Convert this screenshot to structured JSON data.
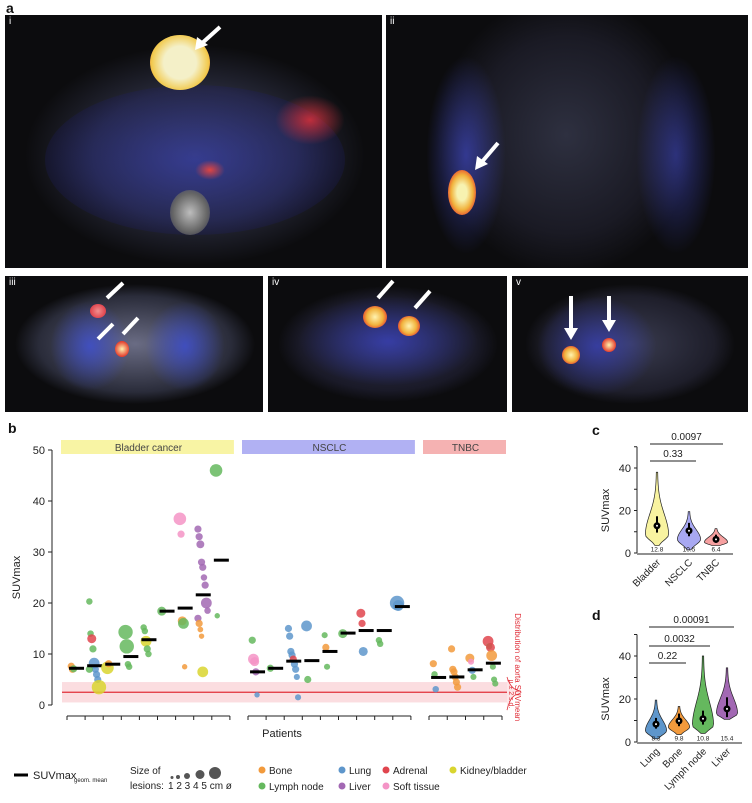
{
  "panel_labels": {
    "a": "a",
    "b": "b",
    "c": "c",
    "d": "d"
  },
  "panel_a": {
    "images": [
      {
        "label": "i"
      },
      {
        "label": "ii"
      },
      {
        "label": "iii"
      },
      {
        "label": "iv"
      },
      {
        "label": "v"
      }
    ]
  },
  "colors": {
    "Bone": "#f29a3c",
    "Lymph node": "#65b85e",
    "Lung": "#5e96cb",
    "Liver": "#a268b3",
    "Adrenal": "#e0454e",
    "Soft tissue": "#f494c6",
    "Kidney/bladder": "#d9d52f",
    "aorta": "#e0303a"
  },
  "chart_data": [
    {
      "type": "scatter",
      "panel": "b",
      "ylabel": "SUVmax",
      "xlabel": "Patients",
      "ylim": [
        0,
        50
      ],
      "yticks": [
        0,
        10,
        20,
        30,
        40,
        50
      ],
      "groups": [
        {
          "name": "Bladder cancer",
          "color": "#f8f4a4",
          "patients": [
            {
              "mean": 7.2,
              "lesions": [
                [
                  7.6,
                  "Bone",
                  1
                ],
                [
                  7.0,
                  "Bone",
                  1
                ],
                [
                  7.1,
                  "Lymph node",
                  1
                ]
              ]
            },
            {
              "mean": 7.7,
              "lesions": [
                [
                  20.3,
                  "Lymph node",
                  0.8
                ],
                [
                  14,
                  "Lymph node",
                  0.8
                ],
                [
                  13,
                  "Adrenal",
                  1.5
                ],
                [
                  11,
                  "Lymph node",
                  1
                ],
                [
                  8.2,
                  "Lung",
                  2
                ],
                [
                  7,
                  "Lung",
                  1
                ],
                [
                  6,
                  "Lung",
                  1
                ],
                [
                  5,
                  "Lung",
                  1
                ],
                [
                  3.5,
                  "Kidney/bladder",
                  3
                ],
                [
                  7,
                  "Lymph node",
                  1
                ]
              ]
            },
            {
              "mean": 8.0,
              "lesions": [
                [
                  7.3,
                  "Kidney/bladder",
                  2.5
                ],
                [
                  8.1,
                  "Bone",
                  1
                ]
              ]
            },
            {
              "mean": 9.5,
              "lesions": [
                [
                  14.3,
                  "Lymph node",
                  3
                ],
                [
                  11.5,
                  "Lymph node",
                  3
                ],
                [
                  8,
                  "Lymph node",
                  0.8
                ],
                [
                  7.5,
                  "Lymph node",
                  0.8
                ]
              ]
            },
            {
              "mean": 12.8,
              "lesions": [
                [
                  15.2,
                  "Lymph node",
                  0.8
                ],
                [
                  14.5,
                  "Lymph node",
                  0.8
                ],
                [
                  12.5,
                  "Kidney/bladder",
                  2
                ],
                [
                  11,
                  "Lymph node",
                  1
                ],
                [
                  10,
                  "Lymph node",
                  0.8
                ]
              ]
            },
            {
              "mean": 18.4,
              "lesions": [
                [
                  18.4,
                  "Lymph node",
                  1.5
                ]
              ]
            },
            {
              "mean": 19.0,
              "lesions": [
                [
                  36.5,
                  "Soft tissue",
                  2.5
                ],
                [
                  33.5,
                  "Soft tissue",
                  1
                ],
                [
                  16.5,
                  "Bone",
                  1.5
                ],
                [
                  16,
                  "Lymph node",
                  2
                ],
                [
                  7.5,
                  "Bone",
                  0.5
                ]
              ]
            },
            {
              "mean": 21.6,
              "lesions": [
                [
                  34.5,
                  "Liver",
                  1
                ],
                [
                  33,
                  "Liver",
                  1
                ],
                [
                  31.5,
                  "Liver",
                  1.2
                ],
                [
                  28,
                  "Liver",
                  1
                ],
                [
                  27,
                  "Liver",
                  1
                ],
                [
                  25,
                  "Liver",
                  0.8
                ],
                [
                  23.5,
                  "Liver",
                  1
                ],
                [
                  20,
                  "Liver",
                  2
                ],
                [
                  18.5,
                  "Liver",
                  0.8
                ],
                [
                  17,
                  "Liver",
                  1
                ],
                [
                  16,
                  "Bone",
                  1
                ],
                [
                  14.8,
                  "Bone",
                  0.6
                ],
                [
                  13.5,
                  "Bone",
                  0.5
                ],
                [
                  6.5,
                  "Kidney/bladder",
                  2
                ]
              ]
            },
            {
              "mean": 28.4,
              "lesions": [
                [
                  46,
                  "Lymph node",
                  2.5
                ],
                [
                  17.5,
                  "Lymph node",
                  0.5
                ]
              ]
            }
          ]
        },
        {
          "name": "NSCLC",
          "color": "#b1b1f3",
          "patients": [
            {
              "mean": 6.5,
              "lesions": [
                [
                  12.7,
                  "Lymph node",
                  1
                ],
                [
                  9,
                  "Soft tissue",
                  2
                ],
                [
                  8.5,
                  "Soft tissue",
                  1.5
                ],
                [
                  6.5,
                  "Liver",
                  1
                ],
                [
                  2,
                  "Lung",
                  0.5
                ]
              ]
            },
            {
              "mean": 7.2,
              "lesions": [
                [
                  7.2,
                  "Lymph node",
                  1
                ]
              ]
            },
            {
              "mean": 8.6,
              "lesions": [
                [
                  15,
                  "Lung",
                  1
                ],
                [
                  13.5,
                  "Lung",
                  1
                ],
                [
                  10.5,
                  "Lung",
                  1
                ],
                [
                  9.8,
                  "Lung",
                  1
                ],
                [
                  9,
                  "Adrenal",
                  1
                ],
                [
                  8,
                  "Lung",
                  1
                ],
                [
                  7,
                  "Lung",
                  1
                ],
                [
                  5.5,
                  "Lung",
                  0.7
                ],
                [
                  1.5,
                  "Lung",
                  0.7
                ]
              ]
            },
            {
              "mean": 8.7,
              "lesions": [
                [
                  15.5,
                  "Lung",
                  2
                ],
                [
                  5,
                  "Lymph node",
                  1
                ]
              ]
            },
            {
              "mean": 10.5,
              "lesions": [
                [
                  13.7,
                  "Lymph node",
                  0.7
                ],
                [
                  11.3,
                  "Bone",
                  1
                ],
                [
                  7.5,
                  "Lymph node",
                  0.7
                ]
              ]
            },
            {
              "mean": 14.1,
              "lesions": [
                [
                  14,
                  "Lymph node",
                  1.5
                ]
              ]
            },
            {
              "mean": 14.6,
              "lesions": [
                [
                  18,
                  "Adrenal",
                  1.5
                ],
                [
                  16,
                  "Adrenal",
                  1
                ],
                [
                  10.5,
                  "Lung",
                  1.5
                ]
              ]
            },
            {
              "mean": 14.6,
              "lesions": [
                [
                  12.7,
                  "Lymph node",
                  0.8
                ],
                [
                  12,
                  "Lymph node",
                  0.8
                ]
              ]
            },
            {
              "mean": 19.3,
              "lesions": [
                [
                  20,
                  "Lung",
                  3
                ],
                [
                  19.5,
                  "Lung",
                  2
                ]
              ]
            }
          ]
        },
        {
          "name": "TNBC",
          "color": "#f5b2b2",
          "patients": [
            {
              "mean": 5.4,
              "lesions": [
                [
                  8.1,
                  "Bone",
                  1
                ],
                [
                  6,
                  "Lymph node",
                  0.8
                ],
                [
                  3.1,
                  "Lung",
                  0.8
                ]
              ]
            },
            {
              "mean": 5.5,
              "lesions": [
                [
                  11,
                  "Bone",
                  1
                ],
                [
                  7,
                  "Bone",
                  1
                ],
                [
                  6.5,
                  "Bone",
                  1
                ],
                [
                  5.5,
                  "Bone",
                  1
                ],
                [
                  4.5,
                  "Bone",
                  1
                ],
                [
                  3.5,
                  "Bone",
                  1
                ]
              ]
            },
            {
              "mean": 6.9,
              "lesions": [
                [
                  9.2,
                  "Bone",
                  1.5
                ],
                [
                  8.5,
                  "Soft tissue",
                  0.7
                ],
                [
                  6.8,
                  "Lung",
                  1
                ],
                [
                  5.5,
                  "Lymph node",
                  0.7
                ]
              ]
            },
            {
              "mean": 8.2,
              "lesions": [
                [
                  12.5,
                  "Adrenal",
                  2
                ],
                [
                  11.5,
                  "Lymph node",
                  0.7
                ],
                [
                  11.3,
                  "Adrenal",
                  1.5
                ],
                [
                  9.7,
                  "Bone",
                  2
                ],
                [
                  7.5,
                  "Lymph node",
                  0.7
                ],
                [
                  5,
                  "Lymph node",
                  0.7
                ],
                [
                  4.2,
                  "Lymph node",
                  0.7
                ]
              ]
            }
          ]
        }
      ],
      "aorta": {
        "mean": 2.5,
        "lower": 0.5,
        "upper": 4.5,
        "label": "Distribution of aorta SUVmean",
        "band_label": "μ ± 2 s.d."
      },
      "legend": {
        "mean_label": "SUVmax",
        "mean_sub": "geom. mean",
        "size_title": "Size of",
        "size_title2": "lesions:",
        "size_ticks": "1 2 3  4    5 cm ø",
        "types": [
          "Bone",
          "Lung",
          "Adrenal",
          "Kidney/bladder",
          "Lymph node",
          "Liver",
          "Soft tissue"
        ]
      }
    },
    {
      "type": "violin",
      "panel": "c",
      "ylabel": "SUVmax",
      "ylim": [
        0,
        50
      ],
      "yticks": [
        0,
        20,
        40
      ],
      "categories": [
        "Bladder",
        "NSCLC",
        "TNBC"
      ],
      "medians": [
        12.8,
        10.5,
        6.4
      ],
      "median_labels": [
        "12.8",
        "10.5",
        "6.4"
      ],
      "ranges": [
        [
          3.5,
          38
        ],
        [
          1.5,
          19.5
        ],
        [
          3.5,
          11.5
        ]
      ],
      "fill": [
        "#f8f3a0",
        "#a8a8f2",
        "#f6a0a0"
      ],
      "comparisons": [
        {
          "a": 0,
          "b": 1,
          "p": "0.33"
        },
        {
          "a": 0,
          "b": 2,
          "p": "0.0097"
        }
      ]
    },
    {
      "type": "violin",
      "panel": "d",
      "ylabel": "SUVmax",
      "ylim": [
        0,
        50
      ],
      "yticks": [
        0,
        20,
        40
      ],
      "categories": [
        "Lung",
        "Bone",
        "Lymph node",
        "Liver"
      ],
      "medians": [
        8.3,
        9.8,
        10.8,
        15.4
      ],
      "median_labels": [
        "8.3",
        "9.8",
        "10.8",
        "15.4"
      ],
      "ranges": [
        [
          1.5,
          19.5
        ],
        [
          3.5,
          16.5
        ],
        [
          4,
          40
        ],
        [
          10.5,
          34.5
        ]
      ],
      "fill": [
        "#5e96cb",
        "#f29a3c",
        "#65b85e",
        "#a268b3"
      ],
      "comparisons": [
        {
          "a": 0,
          "b": 1,
          "p": "0.22"
        },
        {
          "a": 0,
          "b": 2,
          "p": "0.0032"
        },
        {
          "a": 0,
          "b": 3,
          "p": "0.00091"
        }
      ]
    }
  ]
}
